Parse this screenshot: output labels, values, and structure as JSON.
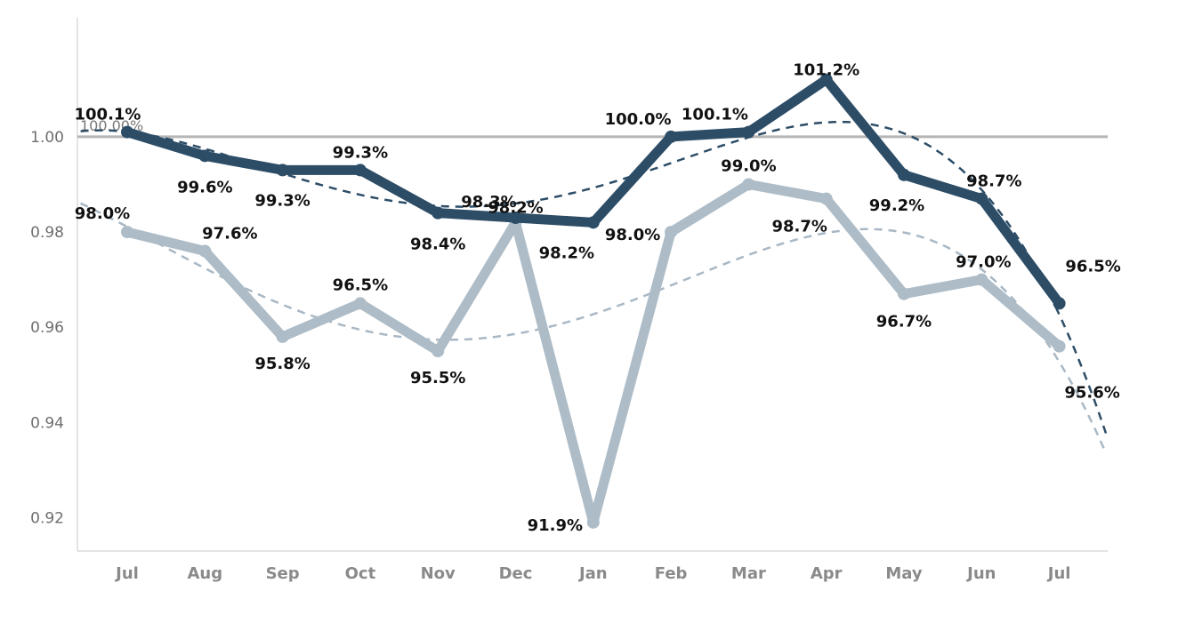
{
  "colors": {
    "series_dark": "#2d4d67",
    "series_light": "#adbcc7",
    "trend_dark": "#2d4d67",
    "trend_light": "#a9b8c4",
    "reference_line": "#b5b5b5",
    "axis": "#dcdcdc"
  },
  "chart_data": {
    "type": "line",
    "title": "",
    "xlabel": "",
    "ylabel": "",
    "categories": [
      "Jul",
      "Aug",
      "Sep",
      "Oct",
      "Nov",
      "Dec",
      "Jan",
      "Feb",
      "Mar",
      "Apr",
      "May",
      "Jun",
      "Jul"
    ],
    "y_ticks": [
      "0.92",
      "0.94",
      "0.96",
      "0.98",
      "1.00"
    ],
    "ylim": [
      0.913,
      1.025
    ],
    "grid": false,
    "reference_line": {
      "value": 1.0,
      "label": "100.00%"
    },
    "series": [
      {
        "values": [
          1.001,
          0.996,
          0.993,
          0.993,
          0.984,
          0.983,
          0.982,
          1.0,
          1.001,
          1.012,
          0.992,
          0.987,
          0.965
        ],
        "labels": [
          "100.1%",
          "99.6%",
          "99.3%",
          "99.3%",
          "98.4%",
          "98.3%",
          "98.2%",
          "100.0%",
          "100.1%",
          "101.2%",
          "99.2%",
          "98.7%",
          "96.5%"
        ],
        "trend": "polynomial"
      },
      {
        "values": [
          0.98,
          0.976,
          0.958,
          0.965,
          0.955,
          0.982,
          0.919,
          0.98,
          0.99,
          0.987,
          0.967,
          0.97,
          0.956
        ],
        "labels": [
          "98.0%",
          "97.6%",
          "95.8%",
          "96.5%",
          "95.5%",
          "98.2%",
          "91.9%",
          "98.0%",
          "99.0%",
          "98.7%",
          "96.7%",
          "97.0%",
          "95.6%"
        ],
        "trend": "polynomial"
      }
    ]
  }
}
